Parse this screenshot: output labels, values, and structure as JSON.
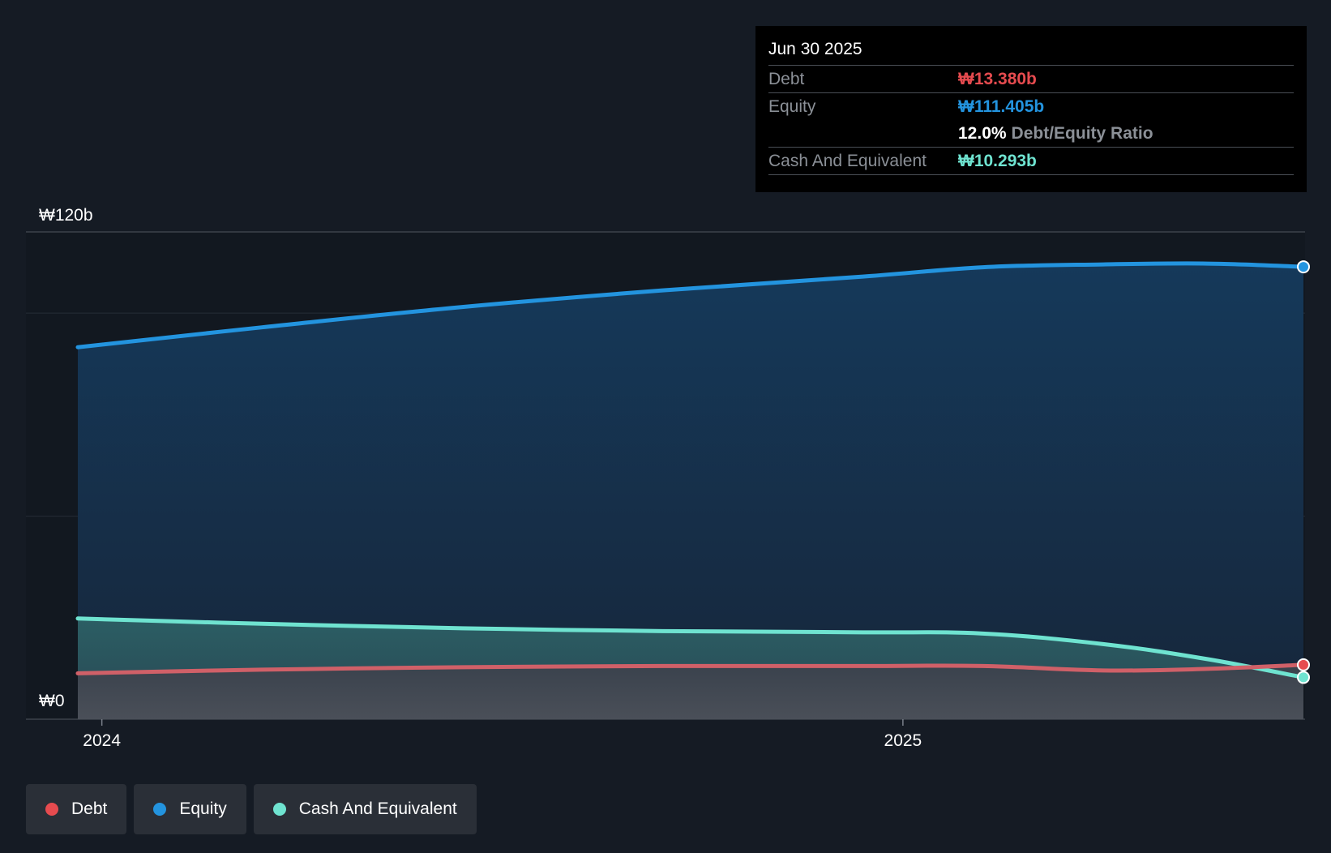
{
  "colors": {
    "debt": "#e64b4f",
    "equity": "#2394df",
    "cash": "#6fe3d0",
    "background": "#151b24"
  },
  "tooltip": {
    "date": "Jun 30 2025",
    "debt_label": "Debt",
    "debt_value": "₩13.380b",
    "equity_label": "Equity",
    "equity_value": "₩111.405b",
    "ratio_value": "12.0%",
    "ratio_label": "Debt/Equity Ratio",
    "cash_label": "Cash And Equivalent",
    "cash_value": "₩10.293b"
  },
  "legend": {
    "debt": "Debt",
    "equity": "Equity",
    "cash": "Cash And Equivalent"
  },
  "chart_data": {
    "type": "area",
    "title": "",
    "xlabel": "",
    "ylabel": "",
    "y_axis_labels": [
      "₩120b",
      "₩0"
    ],
    "y_axis_label_values": [
      120,
      0
    ],
    "x_axis_labels": [
      "2024",
      "2025"
    ],
    "x_axis_label_values": [
      2024.0,
      2025.0
    ],
    "xlim": [
      2023.97,
      2025.5
    ],
    "ylim": [
      0,
      120
    ],
    "gridlines": [
      0,
      50,
      100,
      120
    ],
    "x": [
      2023.97,
      2024.2,
      2024.45,
      2024.7,
      2024.95,
      2025.1,
      2025.25,
      2025.38,
      2025.5
    ],
    "series": [
      {
        "name": "Equity",
        "key": "equity",
        "values": [
          91.6,
          96.5,
          101.5,
          105.6,
          109.0,
          111.3,
          112.0,
          112.2,
          111.4
        ]
      },
      {
        "name": "Cash And Equivalent",
        "key": "cash",
        "values": [
          24.8,
          23.5,
          22.4,
          21.7,
          21.4,
          21.1,
          18.5,
          14.8,
          10.3
        ]
      },
      {
        "name": "Debt",
        "key": "debt",
        "values": [
          11.3,
          12.2,
          12.8,
          13.1,
          13.1,
          13.1,
          12.0,
          12.4,
          13.4
        ]
      }
    ]
  }
}
